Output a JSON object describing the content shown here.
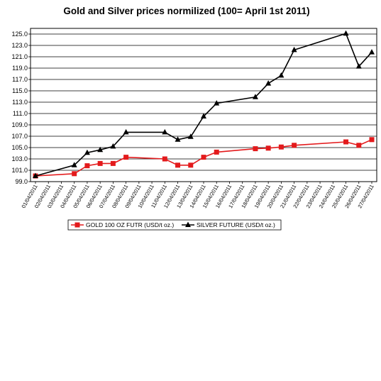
{
  "chart_data": {
    "type": "line",
    "title": "Gold and Silver prices normilized (100= April 1st 2011)",
    "xlabel": "",
    "ylabel": "",
    "ylim": [
      99.0,
      126.0
    ],
    "yticks": [
      "99.0",
      "101.0",
      "103.0",
      "105.0",
      "107.0",
      "109.0",
      "111.0",
      "113.0",
      "115.0",
      "117.0",
      "119.0",
      "121.0",
      "123.0",
      "125.0"
    ],
    "categories": [
      "01/04/2011",
      "02/04/2011",
      "03/04/2011",
      "04/04/2011",
      "05/04/2011",
      "06/04/2011",
      "07/04/2011",
      "08/04/2011",
      "09/04/2011",
      "10/04/2011",
      "11/04/2011",
      "12/04/2011",
      "13/04/2011",
      "14/04/2011",
      "15/04/2011",
      "16/04/2011",
      "17/04/2011",
      "18/04/2011",
      "19/04/2011",
      "20/04/2011",
      "21/04/2011",
      "22/04/2011",
      "23/04/2011",
      "24/04/2011",
      "25/04/2011",
      "26/04/2011",
      "27/04/2011"
    ],
    "grid": true,
    "legend_position": "bottom",
    "series": [
      {
        "name": "GOLD 100 OZ FUTR (USD/t oz.)",
        "color": "#e31a1c",
        "marker": "square",
        "points": [
          {
            "x": "01/04/2011",
            "y": 100.0
          },
          {
            "x": "04/04/2011",
            "y": 100.4
          },
          {
            "x": "05/04/2011",
            "y": 101.8
          },
          {
            "x": "06/04/2011",
            "y": 102.2
          },
          {
            "x": "07/04/2011",
            "y": 102.2
          },
          {
            "x": "08/04/2011",
            "y": 103.3
          },
          {
            "x": "11/04/2011",
            "y": 103.0
          },
          {
            "x": "12/04/2011",
            "y": 101.9
          },
          {
            "x": "13/04/2011",
            "y": 101.9
          },
          {
            "x": "14/04/2011",
            "y": 103.3
          },
          {
            "x": "15/04/2011",
            "y": 104.2
          },
          {
            "x": "18/04/2011",
            "y": 104.8
          },
          {
            "x": "19/04/2011",
            "y": 104.9
          },
          {
            "x": "20/04/2011",
            "y": 105.1
          },
          {
            "x": "21/04/2011",
            "y": 105.4
          },
          {
            "x": "25/04/2011",
            "y": 106.0
          },
          {
            "x": "26/04/2011",
            "y": 105.4
          },
          {
            "x": "27/04/2011",
            "y": 106.4
          }
        ]
      },
      {
        "name": "SILVER FUTURE (USD/t oz.)",
        "color": "#000000",
        "marker": "triangle",
        "points": [
          {
            "x": "01/04/2011",
            "y": 100.0
          },
          {
            "x": "04/04/2011",
            "y": 101.9
          },
          {
            "x": "05/04/2011",
            "y": 104.1
          },
          {
            "x": "06/04/2011",
            "y": 104.6
          },
          {
            "x": "07/04/2011",
            "y": 105.2
          },
          {
            "x": "08/04/2011",
            "y": 107.7
          },
          {
            "x": "11/04/2011",
            "y": 107.7
          },
          {
            "x": "12/04/2011",
            "y": 106.4
          },
          {
            "x": "13/04/2011",
            "y": 106.9
          },
          {
            "x": "14/04/2011",
            "y": 110.5
          },
          {
            "x": "15/04/2011",
            "y": 112.8
          },
          {
            "x": "18/04/2011",
            "y": 113.9
          },
          {
            "x": "19/04/2011",
            "y": 116.3
          },
          {
            "x": "20/04/2011",
            "y": 117.7
          },
          {
            "x": "21/04/2011",
            "y": 122.2
          },
          {
            "x": "25/04/2011",
            "y": 125.1
          },
          {
            "x": "26/04/2011",
            "y": 119.3
          },
          {
            "x": "27/04/2011",
            "y": 121.8
          }
        ]
      }
    ]
  }
}
